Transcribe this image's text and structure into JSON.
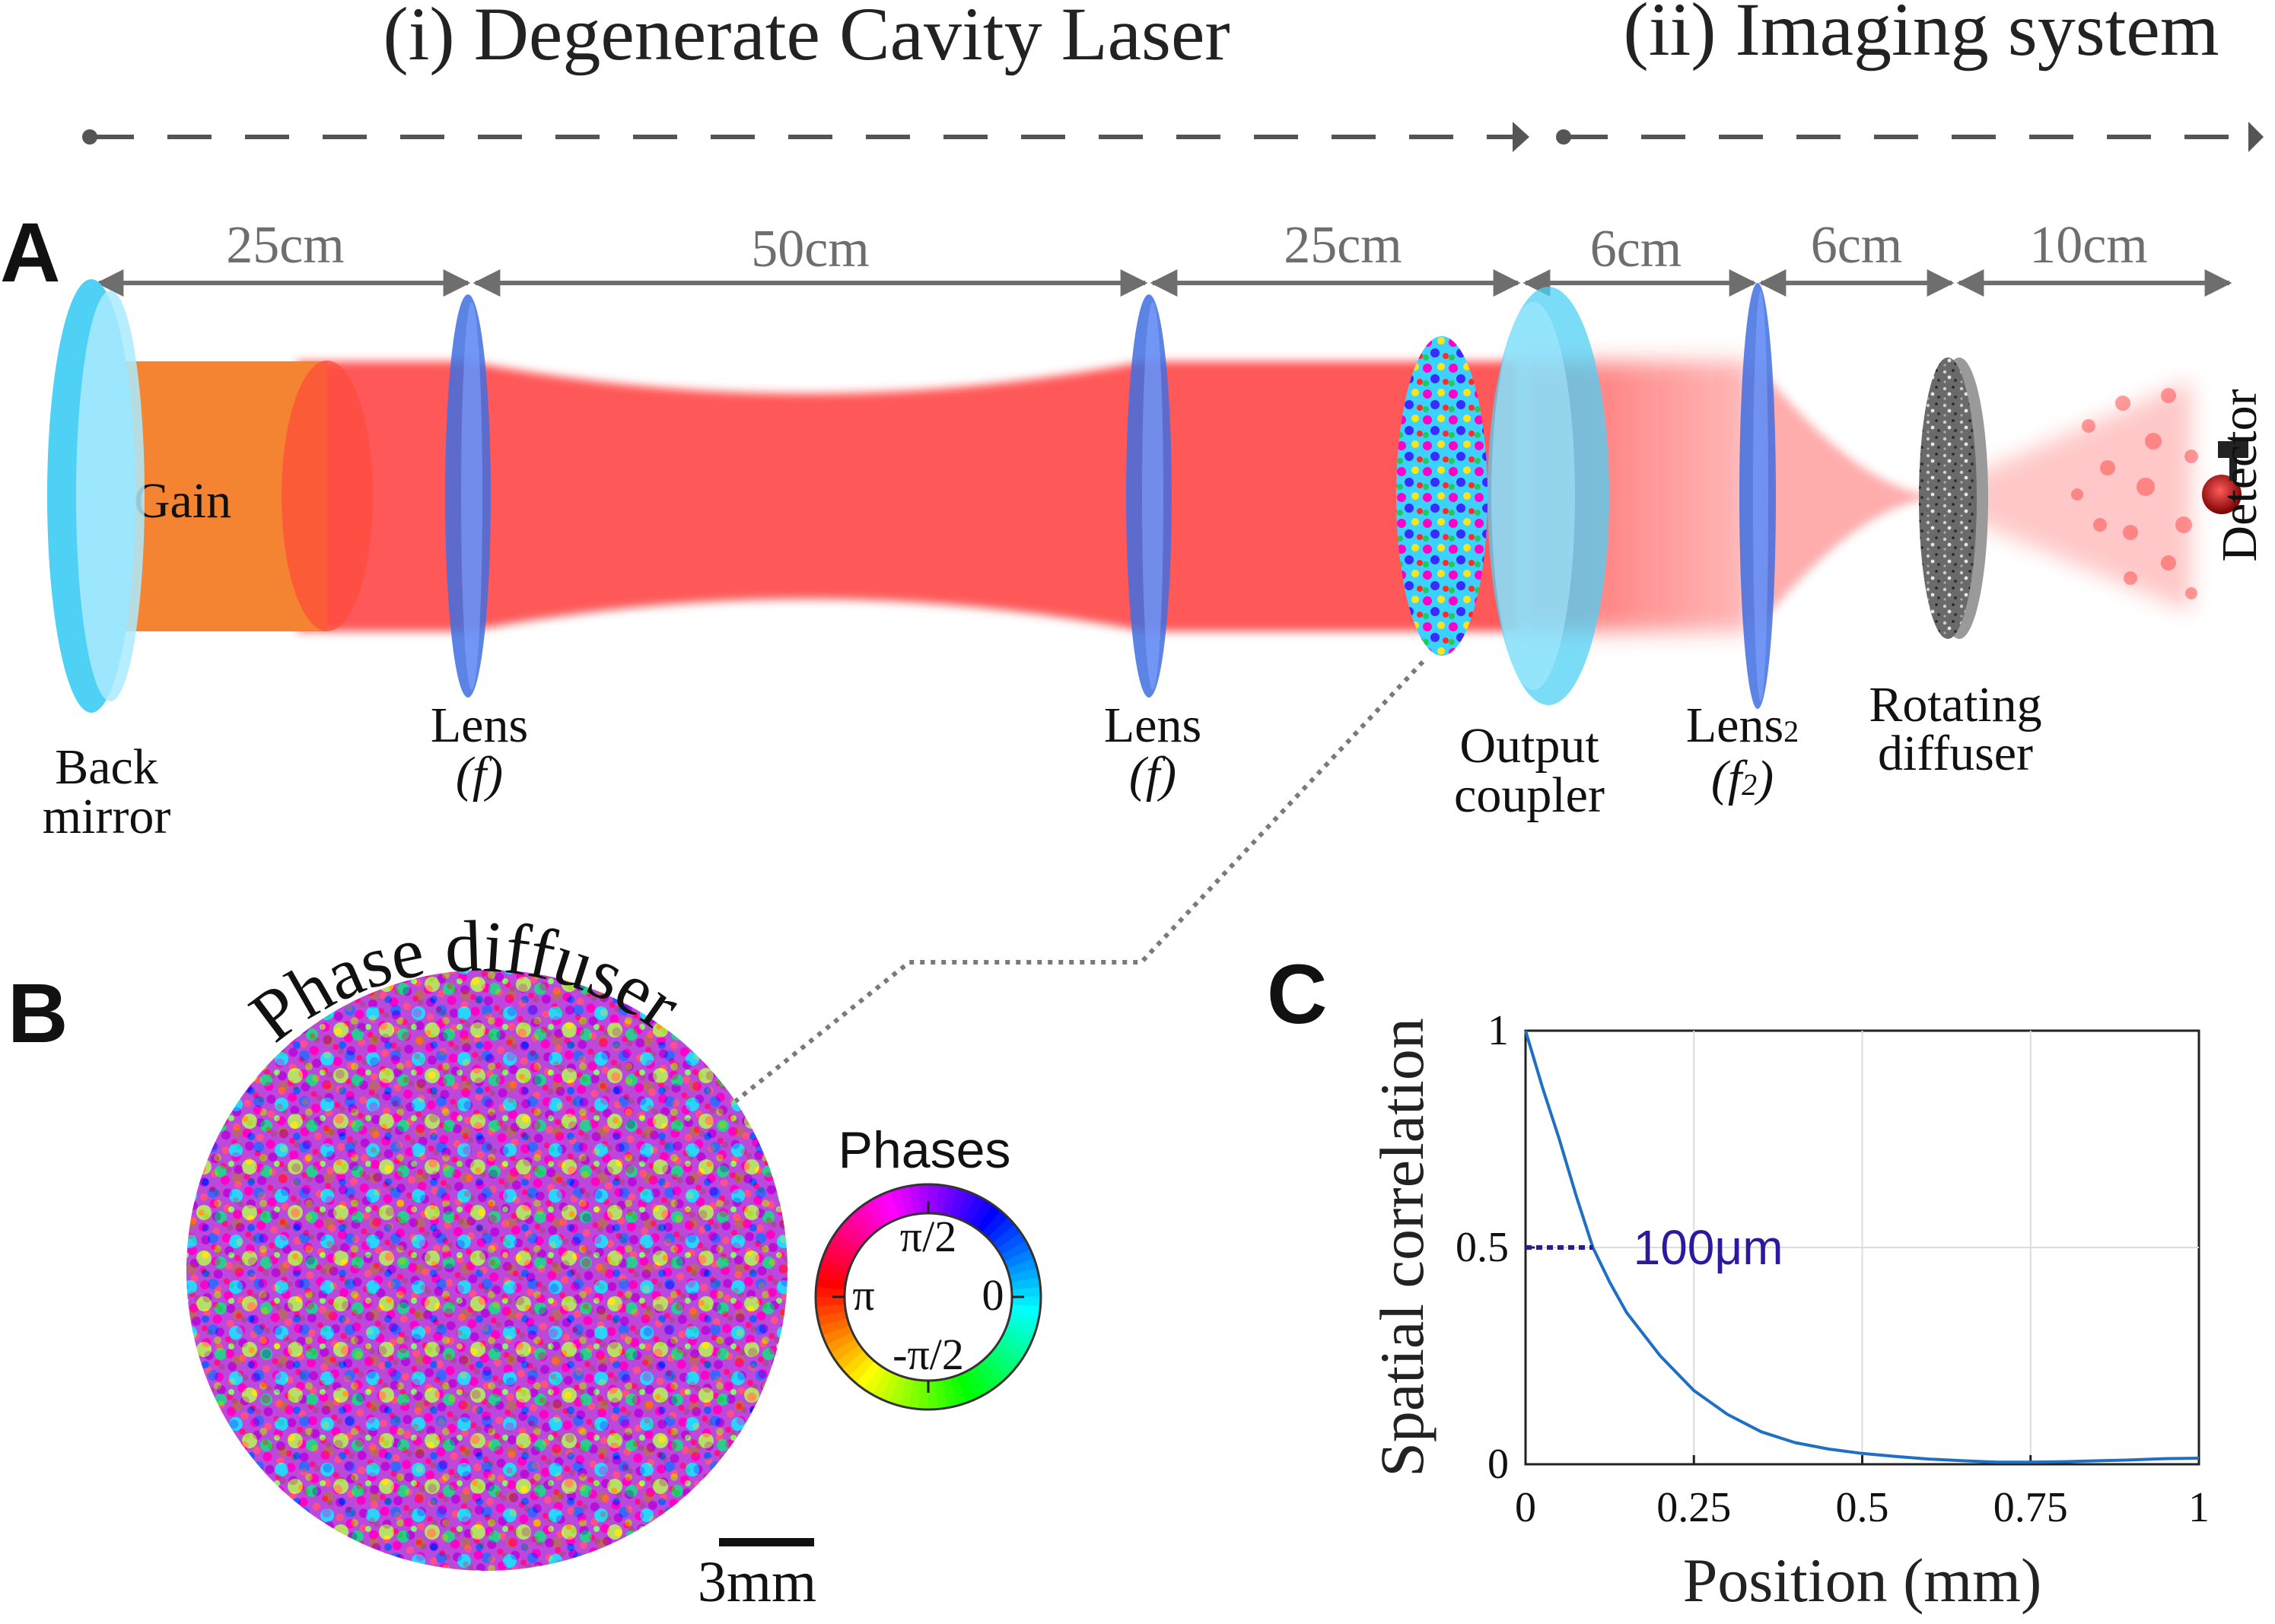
{
  "sections": {
    "cavity": "(i) Degenerate Cavity Laser",
    "imaging": "(ii) Imaging system"
  },
  "panels": {
    "a": "A",
    "b": "B",
    "c": "C"
  },
  "distances": [
    "25cm",
    "50cm",
    "25cm",
    "6cm",
    "6cm",
    "10cm"
  ],
  "components": {
    "gain": "Gain",
    "back_mirror": [
      "Back",
      "mirror"
    ],
    "lens1": [
      "Lens",
      "(f)"
    ],
    "lens2": [
      "Lens",
      "(f)"
    ],
    "output_coupler": [
      "Output",
      "coupler"
    ],
    "lens3": {
      "name": "Lens",
      "sub": "2",
      "focal_f": "(f",
      "focal_sub": "2",
      "focal_close": ")"
    },
    "rotating_diffuser": [
      "Rotating",
      "diffuser"
    ],
    "detector": "Detector"
  },
  "phase_diffuser": {
    "title": "Phase diffuser",
    "scale_bar": "3mm"
  },
  "phases_legend": {
    "title": "Phases",
    "labels": {
      "top": "π/2",
      "left": "π",
      "right": "0",
      "bottom": "-π/2"
    }
  },
  "colors": {
    "arrow": "#6e6e6e",
    "beam": "#ff3a3a",
    "gain": "#f58432",
    "mirror": "#4fd0f5",
    "lens": "#3f6fe0",
    "curve": "#1f6fc5",
    "annotation": "#2a1a9e"
  },
  "chart_data": {
    "type": "line",
    "xlabel": "Position (mm)",
    "ylabel": "Spatial correlation",
    "xlim": [
      0,
      1
    ],
    "ylim": [
      0,
      1
    ],
    "x_ticks": [
      "0",
      "0.25",
      "0.5",
      "0.75",
      "1"
    ],
    "y_ticks": [
      "0",
      "0.5",
      "1"
    ],
    "grid": true,
    "annotation": "100μm",
    "annotation_y": 0.5,
    "annotation_x_end": 0.1,
    "series": [
      {
        "x": [
          0,
          0.025,
          0.05,
          0.075,
          0.1,
          0.125,
          0.15,
          0.2,
          0.25,
          0.3,
          0.35,
          0.4,
          0.45,
          0.5,
          0.55,
          0.6,
          0.65,
          0.7,
          0.75,
          0.8,
          0.85,
          0.9,
          0.95,
          1.0
        ],
        "y": [
          1.0,
          0.87,
          0.75,
          0.62,
          0.5,
          0.42,
          0.35,
          0.25,
          0.17,
          0.115,
          0.075,
          0.05,
          0.035,
          0.025,
          0.018,
          0.012,
          0.008,
          0.005,
          0.005,
          0.006,
          0.008,
          0.01,
          0.013,
          0.014
        ]
      }
    ]
  }
}
